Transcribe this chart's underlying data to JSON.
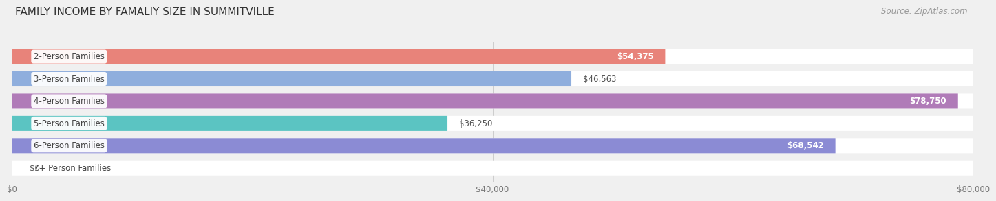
{
  "title": "FAMILY INCOME BY FAMALIY SIZE IN SUMMITVILLE",
  "source": "Source: ZipAtlas.com",
  "categories": [
    "2-Person Families",
    "3-Person Families",
    "4-Person Families",
    "5-Person Families",
    "6-Person Families",
    "7+ Person Families"
  ],
  "values": [
    54375,
    46563,
    78750,
    36250,
    68542,
    0
  ],
  "bar_colors": [
    "#E8837A",
    "#8FAEDD",
    "#B07BB8",
    "#5BC4C2",
    "#8B8BD4",
    "#F0A0B8"
  ],
  "max_value": 80000,
  "x_ticks": [
    0,
    40000,
    80000
  ],
  "x_tick_labels": [
    "$0",
    "$40,000",
    "$80,000"
  ],
  "background_color": "#f0f0f0",
  "title_fontsize": 11,
  "source_fontsize": 8.5,
  "label_fontsize": 8.5,
  "category_fontsize": 8.5
}
